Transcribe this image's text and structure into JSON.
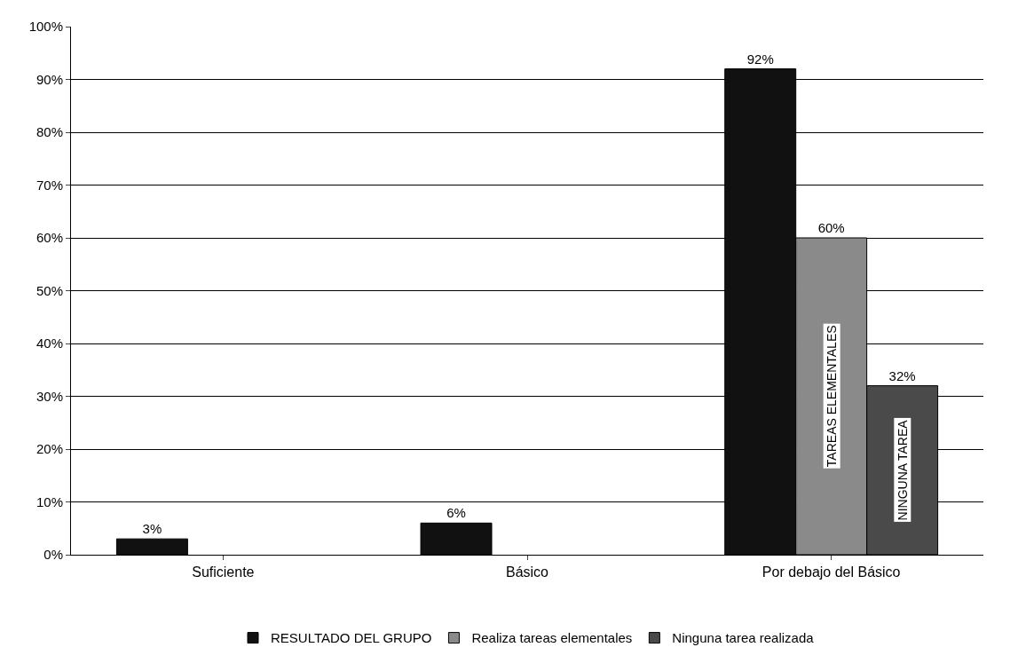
{
  "chart_data": {
    "type": "bar",
    "categories": [
      "Suficiente",
      "Básico",
      "Por debajo del Básico"
    ],
    "series": [
      {
        "name": "RESULTADO DEL GRUPO",
        "color": "#111111",
        "values": [
          3,
          6,
          92
        ]
      },
      {
        "name": "Realiza tareas elementales",
        "color": "#8a8a8a",
        "values": [
          null,
          null,
          60
        ]
      },
      {
        "name": "Ninguna tarea realizada",
        "color": "#4a4a4a",
        "values": [
          null,
          null,
          32
        ]
      }
    ],
    "ylim": [
      0,
      100
    ],
    "yticks": [
      {
        "value": 0,
        "label": "0%"
      },
      {
        "value": 10,
        "label": "10%"
      },
      {
        "value": 20,
        "label": "20%"
      },
      {
        "value": 30,
        "label": "30%"
      },
      {
        "value": 40,
        "label": "40%"
      },
      {
        "value": 50,
        "label": "50%"
      },
      {
        "value": 60,
        "label": "60%"
      },
      {
        "value": 70,
        "label": "70%"
      },
      {
        "value": 80,
        "label": "80%"
      },
      {
        "value": 90,
        "label": "90%"
      },
      {
        "value": 100,
        "label": "100%"
      }
    ],
    "value_labels": [
      [
        "3%",
        "6%",
        "92%"
      ],
      [
        null,
        null,
        "60%"
      ],
      [
        null,
        null,
        "32%"
      ]
    ],
    "annotations": [
      "TAREAS ELEMENTALES",
      "NINGUNA TAREA"
    ],
    "grid": "y",
    "legend": "bottom"
  }
}
